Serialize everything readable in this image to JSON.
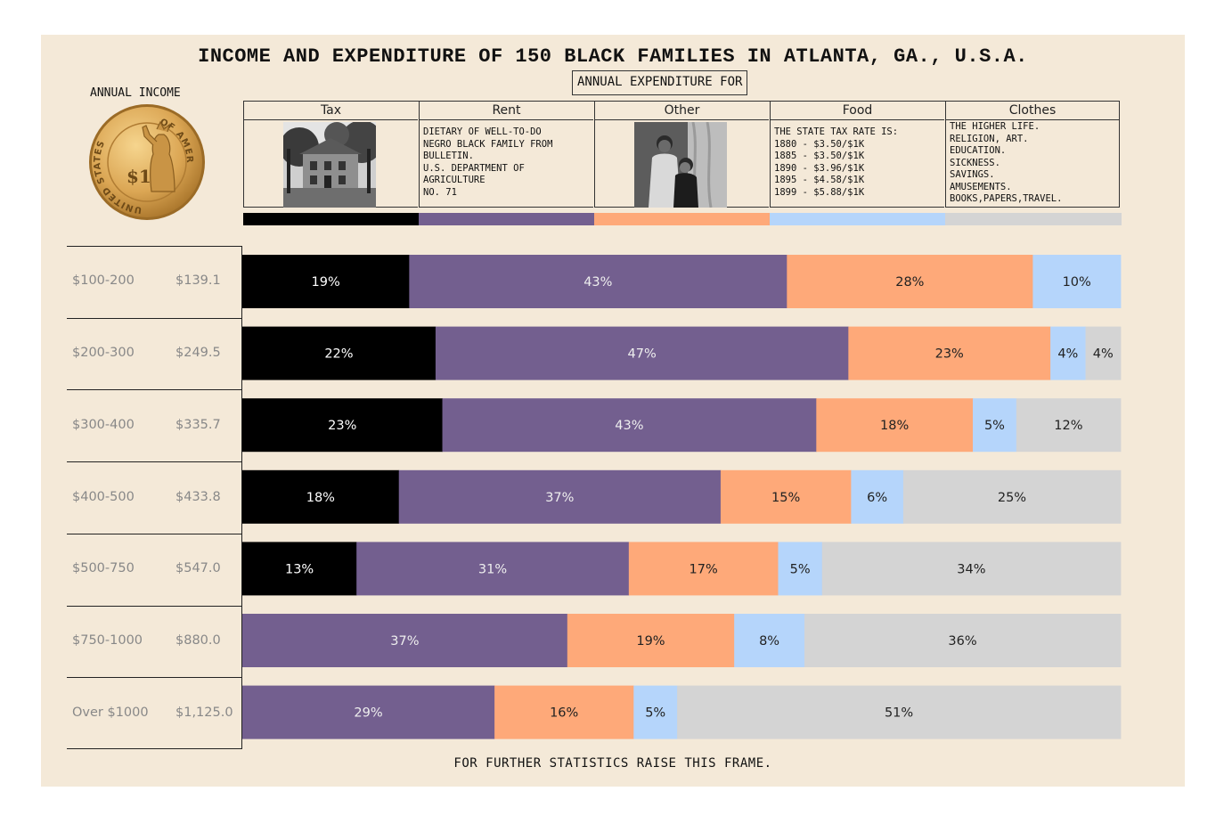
{
  "title": "INCOME AND EXPENDITURE OF 150 BLACK FAMILIES IN ATLANTA, GA., U.S.A.",
  "annual_income_label": "ANNUAL INCOME",
  "annual_expenditure_label": "ANNUAL EXPENDITURE FOR",
  "footer": "FOR FURTHER STATISTICS RAISE THIS FRAME.",
  "coin": {
    "top_text": "OF AMERICA",
    "left_text": "UNITED STATES",
    "value": "$1"
  },
  "categories": [
    {
      "name": "Tax",
      "color": "#000000",
      "description": [],
      "image": "building-photo"
    },
    {
      "name": "Rent",
      "color": "#735f8f",
      "description": [
        "DIETARY OF WELL-TO-DO",
        "NEGRO BLACK FAMILY FROM",
        "BULLETIN.",
        "U.S. DEPARTMENT OF",
        "AGRICULTURE",
        "NO. 71"
      ]
    },
    {
      "name": "Other",
      "color": "#fea979",
      "description": [],
      "image": "family-portrait-photo"
    },
    {
      "name": "Food",
      "color": "#b5d5fb",
      "description": [
        "THE STATE TAX RATE IS:",
        "1880 - $3.50/$1K",
        "1885 - $3.50/$1K",
        "1890 - $3.96/$1K",
        "1895 - $4.58/$1K",
        "1899 - $5.88/$1K"
      ]
    },
    {
      "name": "Clothes",
      "color": "#d4d4d4",
      "description": [
        "THE HIGHER LIFE.",
        "RELIGION, ART.",
        "EDUCATION.",
        "SICKNESS.",
        "SAVINGS.",
        "AMUSEMENTS.",
        "BOOKS,PAPERS,TRAVEL."
      ]
    }
  ],
  "chart_data": {
    "type": "bar",
    "orientation": "horizontal",
    "stacked": true,
    "percent": true,
    "categories": [
      "$100-200",
      "$200-300",
      "$300-400",
      "$400-500",
      "$500-750",
      "$750-1000",
      "Over $1000"
    ],
    "average_income": [
      "$139.1",
      "$249.5",
      "$335.7",
      "$433.8",
      "$547.0",
      "$880.0",
      "$1,125.0"
    ],
    "series": [
      {
        "name": "Tax",
        "color": "#000000",
        "values": [
          19,
          22,
          23,
          18,
          13,
          0,
          0
        ],
        "labels": [
          "19%",
          "22%",
          "23%",
          "18%",
          "13%",
          "",
          ""
        ]
      },
      {
        "name": "Rent",
        "color": "#735f8f",
        "values": [
          43,
          47,
          43,
          37,
          31,
          37,
          29
        ],
        "labels": [
          "43%",
          "47%",
          "43%",
          "37%",
          "31%",
          "37%",
          "29%"
        ]
      },
      {
        "name": "Other",
        "color": "#fea979",
        "values": [
          28,
          23,
          18,
          15,
          17,
          19,
          16
        ],
        "labels": [
          "28%",
          "23%",
          "18%",
          "15%",
          "17%",
          "19%",
          "16%"
        ]
      },
      {
        "name": "Food",
        "color": "#b5d5fb",
        "values": [
          10,
          4,
          5,
          6,
          5,
          8,
          5
        ],
        "labels": [
          "10%",
          "4%",
          "5%",
          "6%",
          "5%",
          "8%",
          "5%"
        ]
      },
      {
        "name": "Clothes",
        "color": "#d4d4d4",
        "values": [
          0,
          4,
          12,
          25,
          34,
          36,
          51
        ],
        "labels": [
          "",
          "4%",
          "12%",
          "25%",
          "34%",
          "36%",
          "51%"
        ]
      }
    ],
    "label_colors": {
      "Tax": "#ffffff",
      "Rent": "#eeeeee",
      "Other": "#222222",
      "Food": "#222222",
      "Clothes": "#222222"
    }
  }
}
